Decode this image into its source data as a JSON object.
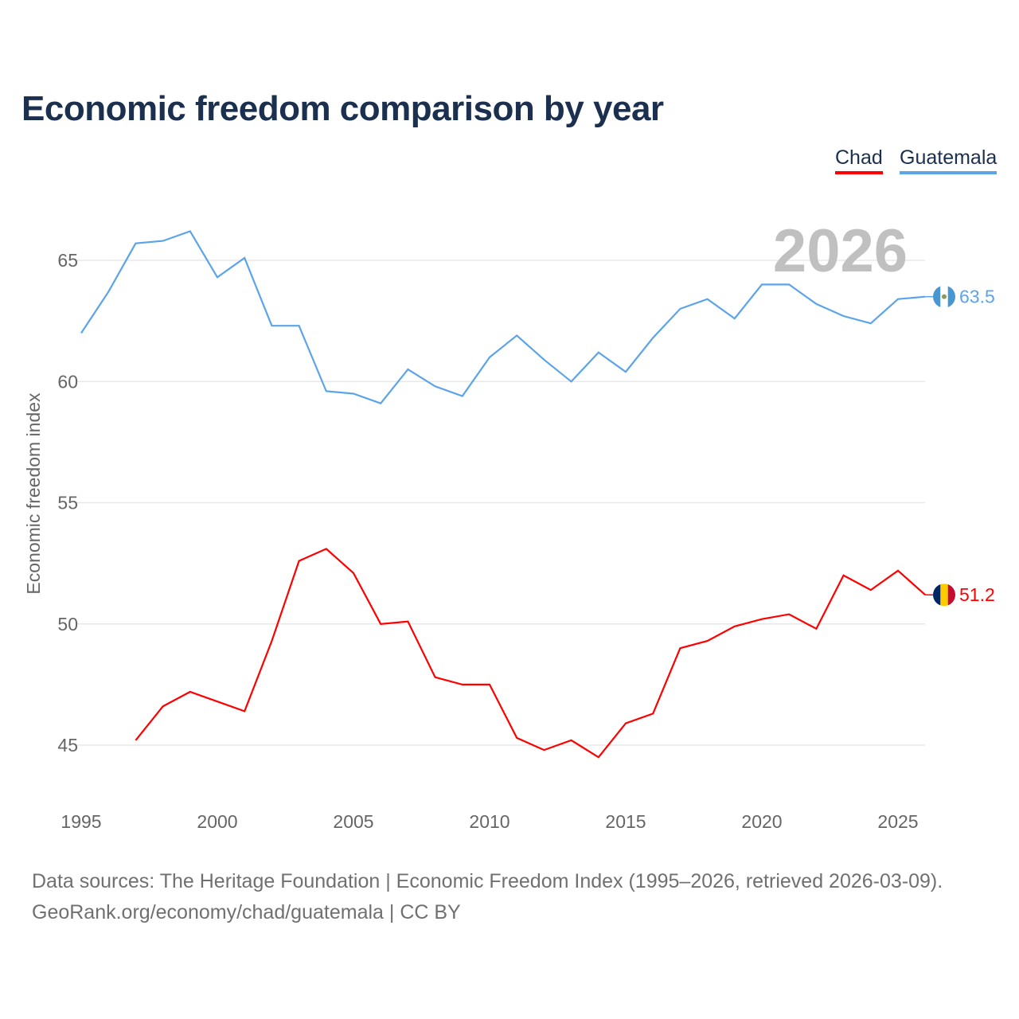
{
  "title": "Economic freedom comparison by year",
  "legend": [
    {
      "name": "Chad",
      "color": "#ff0000"
    },
    {
      "name": "Guatemala",
      "color": "#5ba4ea"
    }
  ],
  "year_watermark": "2026",
  "footer": {
    "line1": "Data sources: The Heritage Foundation | Economic Freedom Index (1995–2026, retrieved 2026-03-09).",
    "line2": "GeoRank.org/economy/chad/guatemala | CC BY"
  },
  "chart_data": {
    "type": "line",
    "title": "Economic freedom comparison by year",
    "xlabel": "",
    "ylabel": "Economic freedom index",
    "xlim": [
      1995,
      2026
    ],
    "ylim": [
      43,
      67.5
    ],
    "xticks": [
      1995,
      2000,
      2005,
      2010,
      2015,
      2020,
      2025
    ],
    "yticks": [
      45,
      50,
      55,
      60,
      65
    ],
    "grid": true,
    "legend_position": "top-right",
    "series": [
      {
        "name": "Guatemala",
        "color": "#5ba4ea",
        "end_label": "63.5",
        "x": [
          1995,
          1996,
          1997,
          1998,
          1999,
          2000,
          2001,
          2002,
          2003,
          2004,
          2005,
          2006,
          2007,
          2008,
          2009,
          2010,
          2011,
          2012,
          2013,
          2014,
          2015,
          2016,
          2017,
          2018,
          2019,
          2020,
          2021,
          2022,
          2023,
          2024,
          2025,
          2026
        ],
        "values": [
          62.0,
          63.7,
          65.7,
          65.8,
          66.2,
          64.3,
          65.1,
          62.3,
          62.3,
          59.6,
          59.5,
          59.1,
          60.5,
          59.8,
          59.4,
          61.0,
          61.9,
          60.9,
          60.0,
          61.2,
          60.4,
          61.8,
          63.0,
          63.4,
          62.6,
          64.0,
          64.0,
          63.2,
          62.7,
          62.4,
          63.4,
          63.5
        ]
      },
      {
        "name": "Chad",
        "color": "#ff0000",
        "end_label": "51.2",
        "x": [
          1997,
          1998,
          1999,
          2000,
          2001,
          2002,
          2003,
          2004,
          2005,
          2006,
          2007,
          2008,
          2009,
          2010,
          2011,
          2012,
          2013,
          2014,
          2015,
          2016,
          2017,
          2018,
          2019,
          2020,
          2021,
          2022,
          2023,
          2024,
          2025,
          2026
        ],
        "values": [
          45.2,
          46.6,
          47.2,
          46.8,
          46.4,
          49.3,
          52.6,
          53.1,
          52.1,
          50.0,
          50.1,
          47.8,
          47.5,
          47.5,
          45.3,
          44.8,
          45.2,
          44.5,
          45.9,
          46.3,
          49.0,
          49.3,
          49.9,
          50.2,
          50.4,
          49.8,
          52.0,
          51.4,
          52.2,
          51.2
        ]
      }
    ]
  }
}
